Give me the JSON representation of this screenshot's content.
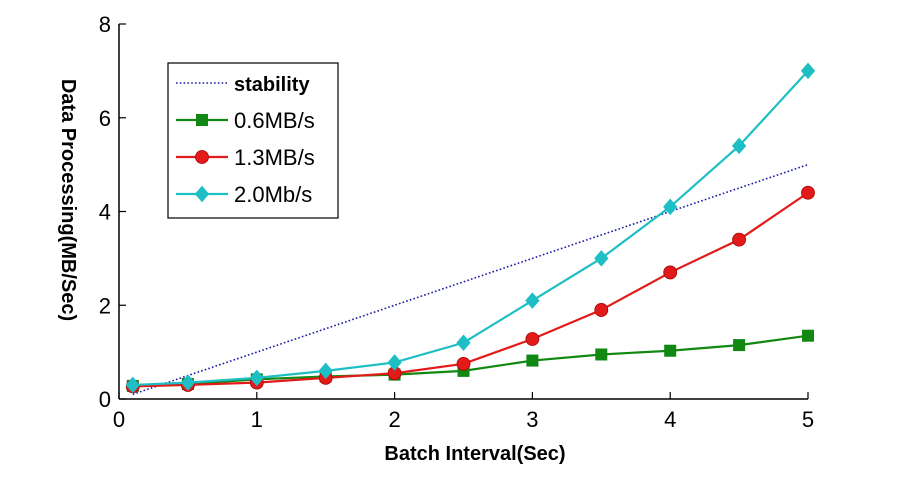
{
  "chart_data": {
    "type": "line",
    "title": "",
    "xlabel": "Batch Interval(Sec)",
    "ylabel": "Data Processing(MB/Sec)",
    "xlim": [
      0,
      5
    ],
    "ylim": [
      0,
      8
    ],
    "xticks": [
      "0",
      "1",
      "2",
      "3",
      "4",
      "5"
    ],
    "yticks": [
      "0",
      "2",
      "4",
      "6",
      "8"
    ],
    "grid": false,
    "legend_position": "top-left",
    "series": [
      {
        "name": "stability",
        "style": "dotted",
        "marker": "none",
        "color": "#1a1aa6",
        "x": [
          0.1,
          5
        ],
        "y": [
          0.1,
          5
        ]
      },
      {
        "name": "0.6MB/s",
        "style": "solid",
        "marker": "square",
        "color": "#118811",
        "x": [
          0.1,
          0.5,
          1,
          1.5,
          2,
          2.5,
          3,
          3.5,
          4,
          4.5,
          5
        ],
        "y": [
          0.28,
          0.32,
          0.42,
          0.48,
          0.52,
          0.6,
          0.82,
          0.95,
          1.03,
          1.15,
          1.35
        ]
      },
      {
        "name": "1.3MB/s",
        "style": "solid",
        "marker": "circle",
        "color": "#e21a1a",
        "x": [
          0.1,
          0.5,
          1,
          1.5,
          2,
          2.5,
          3,
          3.5,
          4,
          4.5,
          5
        ],
        "y": [
          0.27,
          0.3,
          0.35,
          0.45,
          0.55,
          0.75,
          1.28,
          1.9,
          2.7,
          3.4,
          4.4
        ]
      },
      {
        "name": "2.0Mb/s",
        "style": "solid",
        "marker": "diamond",
        "color": "#1ebfc4",
        "x": [
          0.1,
          0.5,
          1,
          1.5,
          2,
          2.5,
          3,
          3.5,
          4,
          4.5,
          5
        ],
        "y": [
          0.3,
          0.35,
          0.45,
          0.6,
          0.78,
          1.2,
          2.1,
          3.0,
          4.1,
          5.4,
          7.0
        ]
      }
    ]
  }
}
